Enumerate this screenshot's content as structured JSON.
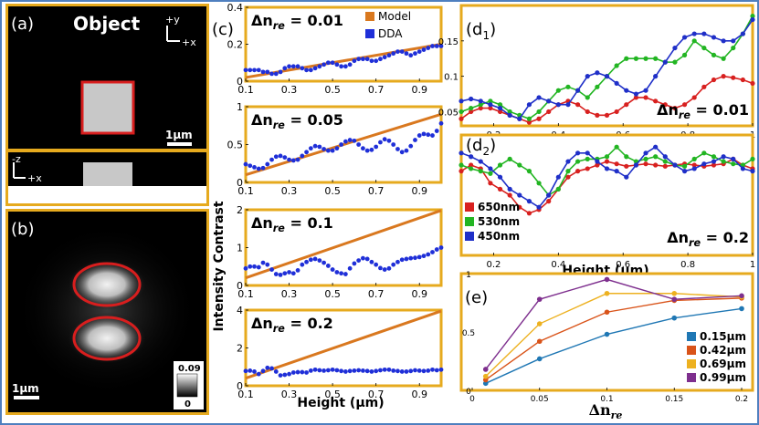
{
  "colors": {
    "frame": "#4f7fbf",
    "panel_border": "#e6aa1e",
    "model": "#d9781f",
    "dda": "#1f2fd8",
    "red": "#d8201f",
    "green": "#22b522",
    "blue": "#1f2fc8",
    "s015": "#1f77b4",
    "s042": "#d95319",
    "s069": "#edb120",
    "s099": "#7e2f8e",
    "ellipse": "#d81e1e"
  },
  "panel_a": {
    "label": "(a)",
    "title": "Object",
    "axis_y": "+y",
    "axis_x": "+x",
    "axis_z": "-z",
    "axis_x2": "+x",
    "scale": "1μm"
  },
  "panel_b": {
    "label": "(b)",
    "scale": "1μm",
    "colorbar_max": "0.09",
    "colorbar_min": "0"
  },
  "panel_c": {
    "label": "(c)",
    "ylabel": "Intensity Contrast",
    "xlabel": "Height (μm)",
    "legend": [
      "Model",
      "DDA"
    ]
  },
  "panel_d": {
    "label1": "(d",
    "sub1": "1",
    "label2": "(d",
    "sub2": "2",
    "xlabel": "Height (μm)",
    "legend": [
      "650nm",
      "530nm",
      "450nm"
    ]
  },
  "panel_e": {
    "label": "(e)",
    "legend": [
      "0.15μm",
      "0.42μm",
      "0.69μm",
      "0.99μm"
    ]
  },
  "chart_data": [
    {
      "id": "c1",
      "type": "scatter",
      "title": "Δn_re = 0.01",
      "x": [
        0.1,
        0.12,
        0.14,
        0.16,
        0.18,
        0.2,
        0.22,
        0.24,
        0.26,
        0.28,
        0.3,
        0.32,
        0.34,
        0.36,
        0.38,
        0.4,
        0.42,
        0.44,
        0.46,
        0.48,
        0.5,
        0.52,
        0.54,
        0.56,
        0.58,
        0.6,
        0.62,
        0.64,
        0.66,
        0.68,
        0.7,
        0.72,
        0.74,
        0.76,
        0.78,
        0.8,
        0.82,
        0.84,
        0.86,
        0.88,
        0.9,
        0.92,
        0.94,
        0.96,
        0.98,
        1.0
      ],
      "series": [
        {
          "name": "Model",
          "line": [
            [
              0.1,
              0.02
            ],
            [
              1.0,
              0.2
            ]
          ]
        },
        {
          "name": "DDA",
          "values": [
            0.06,
            0.06,
            0.06,
            0.06,
            0.05,
            0.05,
            0.04,
            0.04,
            0.05,
            0.07,
            0.08,
            0.08,
            0.08,
            0.07,
            0.06,
            0.06,
            0.07,
            0.08,
            0.09,
            0.1,
            0.1,
            0.09,
            0.08,
            0.08,
            0.09,
            0.11,
            0.12,
            0.12,
            0.12,
            0.11,
            0.11,
            0.12,
            0.13,
            0.14,
            0.15,
            0.16,
            0.16,
            0.15,
            0.14,
            0.15,
            0.16,
            0.17,
            0.18,
            0.19,
            0.19,
            0.19
          ]
        }
      ],
      "xlim": [
        0.1,
        1.0
      ],
      "ylim": [
        0,
        0.4
      ],
      "xticks": [
        "0.1",
        "0.3",
        "0.5",
        "0.7",
        "0.9"
      ],
      "yticks": [
        "0",
        "0.2",
        "0.4"
      ]
    },
    {
      "id": "c2",
      "type": "scatter",
      "title": "Δn_re = 0.05",
      "x": [
        0.1,
        0.12,
        0.14,
        0.16,
        0.18,
        0.2,
        0.22,
        0.24,
        0.26,
        0.28,
        0.3,
        0.32,
        0.34,
        0.36,
        0.38,
        0.4,
        0.42,
        0.44,
        0.46,
        0.48,
        0.5,
        0.52,
        0.54,
        0.56,
        0.58,
        0.6,
        0.62,
        0.64,
        0.66,
        0.68,
        0.7,
        0.72,
        0.74,
        0.76,
        0.78,
        0.8,
        0.82,
        0.84,
        0.86,
        0.88,
        0.9,
        0.92,
        0.94,
        0.96,
        0.98,
        1.0
      ],
      "series": [
        {
          "name": "Model",
          "line": [
            [
              0.1,
              0.1
            ],
            [
              1.0,
              0.9
            ]
          ]
        },
        {
          "name": "DDA",
          "values": [
            0.24,
            0.22,
            0.2,
            0.18,
            0.19,
            0.24,
            0.3,
            0.34,
            0.35,
            0.33,
            0.3,
            0.29,
            0.3,
            0.35,
            0.4,
            0.45,
            0.48,
            0.47,
            0.44,
            0.42,
            0.42,
            0.45,
            0.5,
            0.54,
            0.56,
            0.55,
            0.5,
            0.45,
            0.42,
            0.43,
            0.47,
            0.53,
            0.57,
            0.55,
            0.5,
            0.44,
            0.4,
            0.42,
            0.48,
            0.56,
            0.62,
            0.64,
            0.63,
            0.62,
            0.68,
            0.78
          ]
        }
      ],
      "xlim": [
        0.1,
        1.0
      ],
      "ylim": [
        0,
        1.0
      ],
      "xticks": [
        "0.1",
        "0.3",
        "0.5",
        "0.7",
        "0.9"
      ],
      "yticks": [
        "0",
        "0.5",
        "1"
      ]
    },
    {
      "id": "c3",
      "type": "scatter",
      "title": "Δn_re = 0.1",
      "x": [
        0.1,
        0.12,
        0.14,
        0.16,
        0.18,
        0.2,
        0.22,
        0.24,
        0.26,
        0.28,
        0.3,
        0.32,
        0.34,
        0.36,
        0.38,
        0.4,
        0.42,
        0.44,
        0.46,
        0.48,
        0.5,
        0.52,
        0.54,
        0.56,
        0.58,
        0.6,
        0.62,
        0.64,
        0.66,
        0.68,
        0.7,
        0.72,
        0.74,
        0.76,
        0.78,
        0.8,
        0.82,
        0.84,
        0.86,
        0.88,
        0.9,
        0.92,
        0.94,
        0.96,
        0.98,
        1.0
      ],
      "series": [
        {
          "name": "Model",
          "line": [
            [
              0.1,
              0.2
            ],
            [
              1.0,
              1.98
            ]
          ]
        },
        {
          "name": "DDA",
          "values": [
            0.45,
            0.5,
            0.5,
            0.48,
            0.6,
            0.55,
            0.42,
            0.3,
            0.28,
            0.32,
            0.35,
            0.32,
            0.4,
            0.55,
            0.62,
            0.68,
            0.7,
            0.66,
            0.6,
            0.52,
            0.42,
            0.35,
            0.32,
            0.3,
            0.45,
            0.58,
            0.66,
            0.72,
            0.7,
            0.62,
            0.55,
            0.46,
            0.42,
            0.45,
            0.55,
            0.62,
            0.68,
            0.7,
            0.72,
            0.73,
            0.75,
            0.78,
            0.82,
            0.88,
            0.95,
            1.0
          ]
        }
      ],
      "xlim": [
        0.1,
        1.0
      ],
      "ylim": [
        0,
        2.0
      ],
      "xticks": [
        "0.1",
        "0.3",
        "0.5",
        "0.7",
        "0.9"
      ],
      "yticks": [
        "0",
        "1",
        "2"
      ]
    },
    {
      "id": "c4",
      "type": "scatter",
      "title": "Δn_re = 0.2",
      "x": [
        0.1,
        0.12,
        0.14,
        0.16,
        0.18,
        0.2,
        0.22,
        0.24,
        0.26,
        0.28,
        0.3,
        0.32,
        0.34,
        0.36,
        0.38,
        0.4,
        0.42,
        0.44,
        0.46,
        0.48,
        0.5,
        0.52,
        0.54,
        0.56,
        0.58,
        0.6,
        0.62,
        0.64,
        0.66,
        0.68,
        0.7,
        0.72,
        0.74,
        0.76,
        0.78,
        0.8,
        0.82,
        0.84,
        0.86,
        0.88,
        0.9,
        0.92,
        0.94,
        0.96,
        0.98,
        1.0
      ],
      "series": [
        {
          "name": "Model",
          "line": [
            [
              0.1,
              0.4
            ],
            [
              1.0,
              3.95
            ]
          ]
        },
        {
          "name": "DDA",
          "values": [
            0.78,
            0.8,
            0.75,
            0.62,
            0.78,
            0.95,
            0.92,
            0.75,
            0.55,
            0.58,
            0.62,
            0.7,
            0.72,
            0.72,
            0.7,
            0.8,
            0.85,
            0.82,
            0.8,
            0.82,
            0.85,
            0.82,
            0.78,
            0.75,
            0.78,
            0.8,
            0.82,
            0.8,
            0.78,
            0.75,
            0.78,
            0.82,
            0.85,
            0.85,
            0.8,
            0.78,
            0.75,
            0.75,
            0.78,
            0.82,
            0.8,
            0.78,
            0.8,
            0.85,
            0.82,
            0.85
          ]
        }
      ],
      "xlim": [
        0.1,
        1.0
      ],
      "ylim": [
        0,
        4.0
      ],
      "xticks": [
        "0.1",
        "0.3",
        "0.5",
        "0.7",
        "0.9"
      ],
      "yticks": [
        "0",
        "2",
        "4"
      ]
    },
    {
      "id": "d1",
      "type": "line",
      "title": "Δn_re = 0.01",
      "x": [
        0.1,
        0.13,
        0.16,
        0.19,
        0.22,
        0.25,
        0.28,
        0.31,
        0.34,
        0.37,
        0.4,
        0.43,
        0.46,
        0.49,
        0.52,
        0.55,
        0.58,
        0.61,
        0.64,
        0.67,
        0.7,
        0.73,
        0.76,
        0.79,
        0.82,
        0.85,
        0.88,
        0.91,
        0.94,
        0.97,
        1.0
      ],
      "series": [
        {
          "name": "650nm",
          "values": [
            0.04,
            0.05,
            0.055,
            0.055,
            0.05,
            0.045,
            0.04,
            0.035,
            0.04,
            0.05,
            0.06,
            0.065,
            0.06,
            0.05,
            0.045,
            0.045,
            0.05,
            0.06,
            0.07,
            0.07,
            0.065,
            0.06,
            0.055,
            0.06,
            0.07,
            0.085,
            0.095,
            0.1,
            0.098,
            0.095,
            0.09
          ]
        },
        {
          "name": "530nm",
          "values": [
            0.05,
            0.055,
            0.06,
            0.065,
            0.06,
            0.05,
            0.045,
            0.04,
            0.05,
            0.065,
            0.08,
            0.085,
            0.08,
            0.07,
            0.085,
            0.1,
            0.115,
            0.125,
            0.125,
            0.125,
            0.125,
            0.12,
            0.12,
            0.13,
            0.15,
            0.14,
            0.13,
            0.125,
            0.14,
            0.16,
            0.185
          ]
        },
        {
          "name": "450nm",
          "values": [
            0.065,
            0.068,
            0.065,
            0.06,
            0.055,
            0.045,
            0.04,
            0.06,
            0.07,
            0.065,
            0.06,
            0.06,
            0.08,
            0.1,
            0.105,
            0.1,
            0.09,
            0.08,
            0.075,
            0.08,
            0.1,
            0.12,
            0.14,
            0.155,
            0.16,
            0.16,
            0.155,
            0.15,
            0.15,
            0.16,
            0.18
          ]
        }
      ],
      "xlim": [
        0.1,
        1.0
      ],
      "ylim": [
        0.03,
        0.2
      ],
      "xticks": [
        "0.2",
        "0.4",
        "0.6",
        "0.8",
        "1"
      ],
      "yticks": [
        "0.05",
        "0.1",
        "0.15"
      ]
    },
    {
      "id": "d2",
      "type": "line",
      "title": "Δn_re = 0.2",
      "x": [
        0.1,
        0.13,
        0.16,
        0.19,
        0.22,
        0.25,
        0.28,
        0.31,
        0.34,
        0.37,
        0.4,
        0.43,
        0.46,
        0.49,
        0.52,
        0.55,
        0.58,
        0.61,
        0.64,
        0.67,
        0.7,
        0.73,
        0.76,
        0.79,
        0.82,
        0.85,
        0.88,
        0.91,
        0.94,
        0.97,
        1.0
      ],
      "series": [
        {
          "name": "650nm",
          "values": [
            0.7,
            0.75,
            0.72,
            0.6,
            0.55,
            0.5,
            0.4,
            0.35,
            0.38,
            0.45,
            0.55,
            0.65,
            0.7,
            0.72,
            0.75,
            0.78,
            0.76,
            0.74,
            0.75,
            0.76,
            0.75,
            0.74,
            0.75,
            0.76,
            0.75,
            0.74,
            0.75,
            0.76,
            0.8,
            0.75,
            0.72
          ]
        },
        {
          "name": "530nm",
          "values": [
            0.75,
            0.72,
            0.7,
            0.68,
            0.75,
            0.8,
            0.75,
            0.7,
            0.6,
            0.5,
            0.55,
            0.7,
            0.78,
            0.8,
            0.8,
            0.82,
            0.9,
            0.82,
            0.78,
            0.8,
            0.82,
            0.78,
            0.75,
            0.74,
            0.8,
            0.85,
            0.82,
            0.78,
            0.76,
            0.75,
            0.8
          ]
        },
        {
          "name": "450nm",
          "values": [
            0.85,
            0.82,
            0.78,
            0.72,
            0.65,
            0.55,
            0.5,
            0.45,
            0.4,
            0.5,
            0.65,
            0.78,
            0.85,
            0.85,
            0.78,
            0.72,
            0.7,
            0.65,
            0.75,
            0.85,
            0.9,
            0.82,
            0.75,
            0.7,
            0.72,
            0.76,
            0.78,
            0.82,
            0.8,
            0.72,
            0.7
          ]
        }
      ],
      "xlim": [
        0.1,
        1.0
      ],
      "ylim": [
        0,
        1.0
      ],
      "xticks": [
        "0.2",
        "0.4",
        "0.6",
        "0.8",
        "1"
      ],
      "yticks": []
    },
    {
      "id": "e",
      "type": "line",
      "x": [
        0.01,
        0.05,
        0.1,
        0.15,
        0.2
      ],
      "xticks": [
        "0",
        "0.05",
        "0.1",
        "0.15",
        "0.2"
      ],
      "yticks": [
        "0",
        "0.5",
        "1"
      ],
      "series": [
        {
          "name": "0.15μm",
          "values": [
            0.06,
            0.27,
            0.48,
            0.62,
            0.7
          ]
        },
        {
          "name": "0.42μm",
          "values": [
            0.09,
            0.42,
            0.67,
            0.77,
            0.79
          ]
        },
        {
          "name": "0.69μm",
          "values": [
            0.12,
            0.57,
            0.83,
            0.83,
            0.8
          ]
        },
        {
          "name": "0.99μm",
          "values": [
            0.18,
            0.78,
            0.95,
            0.78,
            0.81
          ]
        }
      ],
      "xlim": [
        0,
        0.2
      ],
      "ylim": [
        0,
        1.0
      ]
    }
  ]
}
